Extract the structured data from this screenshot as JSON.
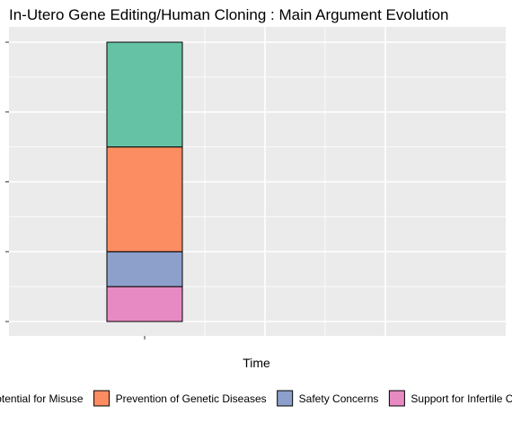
{
  "chart_data": {
    "type": "bar",
    "stacked": true,
    "title": "In-Utero Gene Editing/Human Cloning : Main Argument Evolution",
    "xlabel": "Time",
    "ylabel": "",
    "categories": [
      ""
    ],
    "ylim": [
      0,
      8
    ],
    "y_ticks": [
      0,
      2,
      4,
      6,
      8
    ],
    "grid": true,
    "legend_position": "bottom",
    "series": [
      {
        "name": "Potential for Misuse",
        "values": [
          3
        ],
        "color": "#66C2A5"
      },
      {
        "name": "Prevention of Genetic Diseases",
        "values": [
          3
        ],
        "color": "#FC8D62"
      },
      {
        "name": "Safety Concerns",
        "values": [
          1
        ],
        "color": "#8DA0CB"
      },
      {
        "name": "Support for Infertile Couples",
        "values": [
          1
        ],
        "color": "#E78AC3"
      }
    ]
  }
}
